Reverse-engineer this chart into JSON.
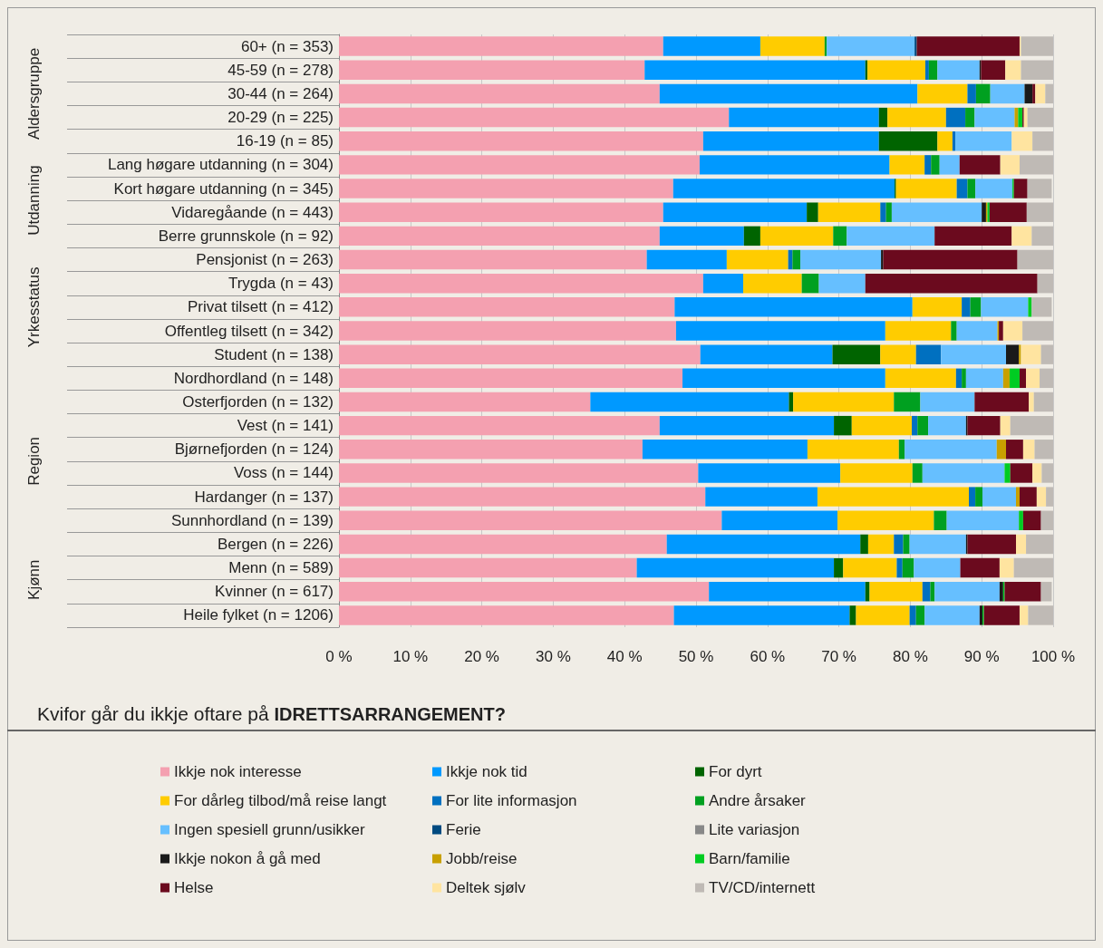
{
  "chart_data": {
    "type": "bar",
    "orientation": "horizontal",
    "stacked": true,
    "title": "Kvifor går du ikkje oftare på IDRETTSARRANGEMENT?",
    "categories": [
      "60+ (n = 353)",
      "45-59 (n = 278)",
      "30-44 (n = 264)",
      "20-29 (n = 225)",
      "16-19 (n = 85)",
      "Lang høgare utdanning (n = 304)",
      "Kort høgare utdanning (n = 345)",
      "Vidaregåande (n = 443)",
      "Berre grunnskole (n = 92)",
      "Pensjonist (n = 263)",
      "Trygda (n = 43)",
      "Privat tilsett (n = 412)",
      "Offentleg tilsett (n = 342)",
      "Student (n = 138)",
      "Nordhordland (n = 148)",
      "Osterfjorden (n = 132)",
      "Vest (n = 141)",
      "Bjørnefjorden (n = 124)",
      "Voss (n = 144)",
      "Hardanger (n = 137)",
      "Sunnhordland (n = 139)",
      "Bergen (n = 226)",
      "Menn (n = 589)",
      "Kvinner (n = 617)",
      "Heile fylket (n = 1206)"
    ],
    "series": [
      {
        "name": "Ikkje nok interesse",
        "color": "#f4a0b0",
        "values": [
          45.4,
          42.8,
          44.9,
          54.6,
          51.0,
          50.5,
          46.8,
          45.4,
          44.9,
          43.1,
          51.0,
          47.0,
          47.2,
          50.6,
          48.1,
          35.2,
          44.9,
          42.5,
          50.3,
          51.3,
          53.6,
          45.9,
          41.7,
          51.8,
          46.9
        ]
      },
      {
        "name": "Ikkje nok tid",
        "color": "#0099ff",
        "values": [
          13.6,
          30.9,
          36.1,
          21.0,
          24.6,
          26.6,
          31.0,
          20.1,
          11.8,
          11.2,
          5.6,
          33.3,
          29.3,
          18.5,
          28.4,
          27.8,
          24.4,
          23.1,
          19.9,
          15.7,
          16.2,
          27.1,
          27.6,
          21.9,
          24.6
        ]
      },
      {
        "name": "For dyrt",
        "color": "#006400",
        "values": [
          0,
          0.3,
          0,
          1.2,
          8.2,
          0,
          0.2,
          1.6,
          2.3,
          0,
          0,
          0,
          0,
          6.7,
          0,
          0.6,
          2.5,
          0,
          0,
          0,
          0,
          1.1,
          1.3,
          0.6,
          0.9
        ]
      },
      {
        "name": "For dårleg tilbod/må reise langt",
        "color": "#ffcc00",
        "values": [
          9.0,
          8.1,
          7.0,
          8.2,
          2.1,
          4.9,
          8.5,
          8.7,
          10.2,
          8.6,
          8.2,
          6.9,
          9.2,
          5.0,
          9.9,
          14.1,
          8.4,
          12.8,
          10.1,
          21.2,
          13.5,
          3.6,
          7.5,
          7.4,
          7.5
        ]
      },
      {
        "name": "For lite informasjon",
        "color": "#0070c0",
        "values": [
          0,
          0.5,
          1.2,
          2.7,
          0.4,
          0.9,
          1.5,
          0.8,
          0,
          0.6,
          0,
          1.2,
          0,
          3.5,
          0.8,
          0,
          0.8,
          0,
          0,
          0.9,
          0,
          1.3,
          0.8,
          1.1,
          0.9
        ]
      },
      {
        "name": "Andre årsaker",
        "color": "#00a020",
        "values": [
          0.3,
          1.2,
          2.0,
          1.3,
          0,
          1.2,
          1.1,
          0.8,
          1.9,
          1.1,
          2.4,
          1.5,
          0.8,
          0,
          0.6,
          3.7,
          1.5,
          0.8,
          1.4,
          1.0,
          1.8,
          0.9,
          1.6,
          0.6,
          1.2
        ]
      },
      {
        "name": "Ingen spesiell grunn/usikker",
        "color": "#66bfff",
        "values": [
          12.3,
          5.9,
          4.8,
          5.6,
          7.9,
          2.8,
          5.2,
          12.6,
          12.3,
          11.3,
          6.5,
          6.6,
          5.7,
          9.1,
          5.2,
          7.6,
          5.3,
          12.9,
          11.5,
          4.7,
          10.1,
          7.9,
          6.5,
          9.1,
          7.7
        ]
      },
      {
        "name": "Ferie",
        "color": "#004a80",
        "values": [
          0.3,
          0,
          0,
          0,
          0,
          0,
          0,
          0,
          0,
          0,
          0,
          0,
          0,
          0,
          0,
          0,
          0,
          0,
          0,
          0,
          0,
          0,
          0,
          0,
          0
        ]
      },
      {
        "name": "Lite variasjon",
        "color": "#888888",
        "values": [
          0,
          0,
          0,
          0,
          0,
          0,
          0,
          0,
          0,
          0,
          0,
          0,
          0,
          0,
          0,
          0,
          0,
          0,
          0,
          0,
          0,
          0,
          0,
          0,
          0
        ]
      },
      {
        "name": "Ikkje nokon å gå med",
        "color": "#1a1a1a",
        "values": [
          0,
          0.2,
          1.1,
          0,
          0,
          0,
          0,
          0.6,
          0,
          0.3,
          0,
          0,
          0,
          1.8,
          0,
          0,
          0.2,
          0,
          0,
          0,
          0,
          0.2,
          0,
          0.5,
          0.4
        ]
      },
      {
        "name": "Jobb/reise",
        "color": "#c8a000",
        "values": [
          0,
          0,
          0,
          0.5,
          0,
          0,
          0,
          0.2,
          0,
          0,
          0,
          0,
          0.2,
          0.3,
          0.9,
          0,
          0,
          1.3,
          0,
          0.5,
          0,
          0,
          0,
          0,
          0
        ]
      },
      {
        "name": "Barn/familie",
        "color": "#00cc22",
        "values": [
          0,
          0,
          0,
          0.6,
          0,
          0,
          0.2,
          0.3,
          0,
          0,
          0,
          0.5,
          0,
          0,
          1.4,
          0,
          0,
          0,
          0.8,
          0,
          0.6,
          0,
          0,
          0.2,
          0.2
        ]
      },
      {
        "name": "Helse",
        "color": "#6b0a1e",
        "values": [
          14.4,
          3.4,
          0.4,
          0.2,
          0,
          5.7,
          1.9,
          5.2,
          10.8,
          18.8,
          24.1,
          0,
          0.6,
          0,
          0.9,
          7.6,
          4.6,
          2.4,
          3.1,
          2.4,
          2.5,
          6.8,
          5.5,
          5.1,
          5.0
        ]
      },
      {
        "name": "Deltek sjølv",
        "color": "#ffe4a0",
        "values": [
          0.2,
          2.2,
          1.4,
          0.5,
          2.9,
          2.7,
          null,
          0,
          2.8,
          0,
          0,
          null,
          2.7,
          2.8,
          1.9,
          0.7,
          1.4,
          1.6,
          1.3,
          1.3,
          0,
          1.4,
          2.0,
          null,
          1.2
        ]
      },
      {
        "name": "TV/CD/internett",
        "color": "#bfbab5",
        "values": [
          4.5,
          4.5,
          1.1,
          3.6,
          2.9,
          4.7,
          3.4,
          3.7,
          3.0,
          5.0,
          2.2,
          2.8,
          4.3,
          1.7,
          1.9,
          2.7,
          6.0,
          2.6,
          1.6,
          1.0,
          1.7,
          3.8,
          5.5,
          1.5,
          3.5
        ]
      }
    ],
    "xlim": [
      0,
      100
    ],
    "xticks": [
      {
        "value": 0,
        "label": "0 %"
      },
      {
        "value": 10,
        "label": "10 %"
      },
      {
        "value": 20,
        "label": "20 %"
      },
      {
        "value": 30,
        "label": "30 %"
      },
      {
        "value": 40,
        "label": "40 %"
      },
      {
        "value": 50,
        "label": "50 %"
      },
      {
        "value": 60,
        "label": "60 %"
      },
      {
        "value": 70,
        "label": "70 %"
      },
      {
        "value": 80,
        "label": "80 %"
      },
      {
        "value": 90,
        "label": "90 %"
      },
      {
        "value": 100,
        "label": "100 %"
      }
    ],
    "grid": "x",
    "legend": "bottom",
    "annotations": [
      "Aldersgruppe",
      "Utdanning",
      "Yrkesstatus",
      "Region",
      "Kjønn"
    ]
  }
}
